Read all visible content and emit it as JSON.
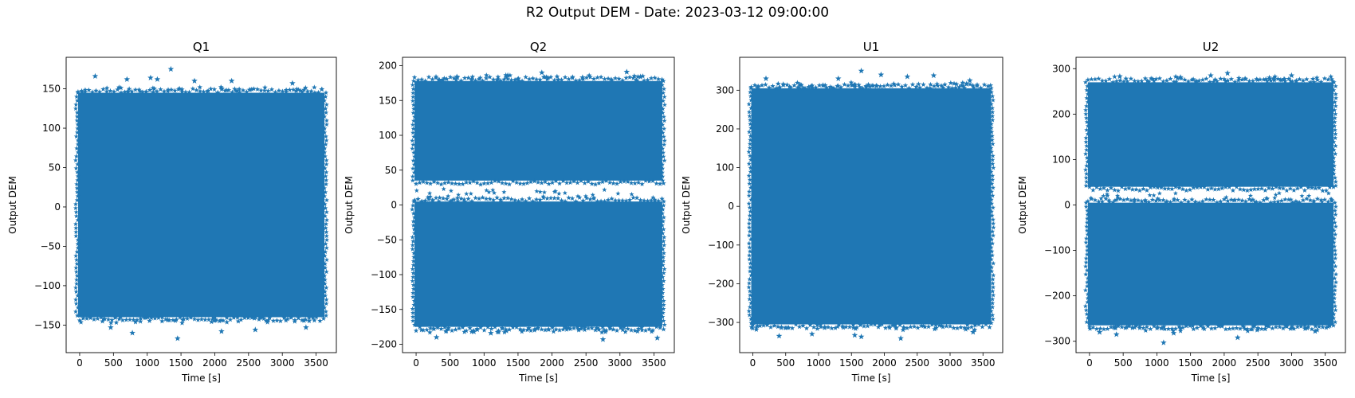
{
  "figure": {
    "title": "R2 Output DEM - Date: 2023-03-12 09:00:00"
  },
  "style": {
    "marker_color": "#1f77b4",
    "marker": "star"
  },
  "chart_data": [
    {
      "type": "scatter",
      "title": "Q1",
      "xlabel": "Time [s]",
      "ylabel": "Output DEM",
      "xlim": [
        -200,
        3800
      ],
      "ylim": [
        -185,
        190
      ],
      "xticks": [
        0,
        500,
        1000,
        1500,
        2000,
        2500,
        3000,
        3500
      ],
      "yticks": [
        -150,
        -100,
        -50,
        0,
        50,
        100,
        150
      ],
      "grid": false,
      "x_range": [
        0,
        3600
      ],
      "band": [
        -140,
        145
      ],
      "gap": null,
      "outliers": [
        [
          230,
          166
        ],
        [
          700,
          162
        ],
        [
          1050,
          164
        ],
        [
          1150,
          162
        ],
        [
          1350,
          175
        ],
        [
          1700,
          160
        ],
        [
          2250,
          160
        ],
        [
          3150,
          157
        ],
        [
          1450,
          -167
        ],
        [
          780,
          -160
        ],
        [
          2100,
          -158
        ],
        [
          2600,
          -156
        ],
        [
          3350,
          -153
        ],
        [
          460,
          -153
        ]
      ]
    },
    {
      "type": "scatter",
      "title": "Q2",
      "xlabel": "Time [s]",
      "ylabel": "Output DEM",
      "xlim": [
        -200,
        3800
      ],
      "ylim": [
        -212,
        212
      ],
      "xticks": [
        0,
        500,
        1000,
        1500,
        2000,
        2500,
        3000,
        3500
      ],
      "yticks": [
        -200,
        -150,
        -100,
        -50,
        0,
        50,
        100,
        150,
        200
      ],
      "grid": false,
      "x_range": [
        0,
        3600
      ],
      "band": [
        -175,
        178
      ],
      "gap": [
        5,
        35
      ],
      "outliers": [
        [
          1850,
          190
        ],
        [
          3100,
          191
        ],
        [
          1350,
          186
        ],
        [
          600,
          184
        ],
        [
          2450,
          183
        ],
        [
          300,
          -190
        ],
        [
          2750,
          -193
        ],
        [
          3550,
          -191
        ],
        [
          1100,
          -184
        ],
        [
          850,
          -182
        ]
      ]
    },
    {
      "type": "scatter",
      "title": "U1",
      "xlabel": "Time [s]",
      "ylabel": "Output DEM",
      "xlim": [
        -200,
        3800
      ],
      "ylim": [
        -378,
        385
      ],
      "xticks": [
        0,
        500,
        1000,
        1500,
        2000,
        2500,
        3000,
        3500
      ],
      "yticks": [
        -300,
        -200,
        -100,
        0,
        100,
        200,
        300
      ],
      "grid": false,
      "x_range": [
        0,
        3600
      ],
      "band": [
        -305,
        305
      ],
      "gap": null,
      "outliers": [
        [
          1650,
          350
        ],
        [
          1950,
          340
        ],
        [
          2750,
          338
        ],
        [
          2350,
          335
        ],
        [
          1300,
          330
        ],
        [
          200,
          330
        ],
        [
          3300,
          325
        ],
        [
          2250,
          -341
        ],
        [
          1650,
          -337
        ],
        [
          400,
          -335
        ],
        [
          1550,
          -333
        ],
        [
          900,
          -330
        ],
        [
          3350,
          -325
        ]
      ]
    },
    {
      "type": "scatter",
      "title": "U2",
      "xlabel": "Time [s]",
      "ylabel": "Output DEM",
      "xlim": [
        -200,
        3800
      ],
      "ylim": [
        -325,
        325
      ],
      "xticks": [
        0,
        500,
        1000,
        1500,
        2000,
        2500,
        3000,
        3500
      ],
      "yticks": [
        -300,
        -200,
        -100,
        0,
        100,
        200,
        300
      ],
      "grid": false,
      "x_range": [
        0,
        3600
      ],
      "band": [
        -265,
        270
      ],
      "gap": [
        5,
        40
      ],
      "outliers": [
        [
          2050,
          290
        ],
        [
          1800,
          285
        ],
        [
          3000,
          285
        ],
        [
          450,
          283
        ],
        [
          1350,
          281
        ],
        [
          1100,
          -303
        ],
        [
          2200,
          -292
        ],
        [
          400,
          -285
        ],
        [
          1250,
          -282
        ],
        [
          150,
          -280
        ],
        [
          3350,
          -278
        ]
      ]
    }
  ]
}
